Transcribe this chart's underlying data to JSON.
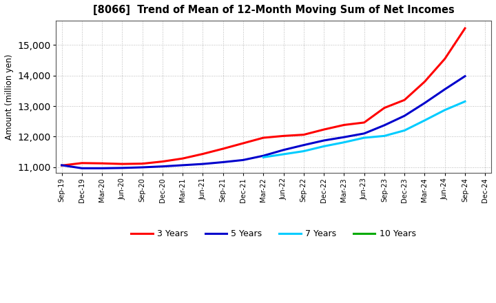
{
  "title": "[8066]  Trend of Mean of 12-Month Moving Sum of Net Incomes",
  "ylabel": "Amount (million yen)",
  "background_color": "#ffffff",
  "plot_bg_color": "#ffffff",
  "grid_color": "#888888",
  "x_labels": [
    "Sep-19",
    "Dec-19",
    "Mar-20",
    "Jun-20",
    "Sep-20",
    "Dec-20",
    "Mar-21",
    "Jun-21",
    "Sep-21",
    "Dec-21",
    "Mar-22",
    "Jun-22",
    "Sep-22",
    "Dec-22",
    "Mar-23",
    "Jun-23",
    "Sep-23",
    "Dec-23",
    "Mar-24",
    "Jun-24",
    "Sep-24",
    "Dec-24"
  ],
  "ylim": [
    10800,
    15800
  ],
  "yticks": [
    11000,
    12000,
    13000,
    14000,
    15000
  ],
  "series": [
    {
      "label": "3 Years",
      "color": "#ff0000",
      "values": [
        11050,
        11130,
        11120,
        11100,
        11110,
        11180,
        11280,
        11430,
        11600,
        11780,
        11960,
        12020,
        12060,
        12230,
        12380,
        12460,
        12940,
        13200,
        13800,
        14550,
        15550,
        null
      ]
    },
    {
      "label": "5 Years",
      "color": "#0000cc",
      "values": [
        11060,
        10960,
        10960,
        10970,
        10990,
        11020,
        11060,
        11100,
        11160,
        11230,
        11370,
        11560,
        11720,
        11870,
        11980,
        12100,
        12370,
        12680,
        13100,
        13550,
        13980,
        null
      ]
    },
    {
      "label": "7 Years",
      "color": "#00ccff",
      "values": [
        null,
        null,
        null,
        null,
        null,
        null,
        null,
        null,
        null,
        null,
        11320,
        11420,
        11520,
        11680,
        11810,
        11960,
        12020,
        12200,
        12530,
        12870,
        13150,
        null
      ]
    },
    {
      "label": "10 Years",
      "color": "#00aa00",
      "values": [
        null,
        null,
        null,
        null,
        null,
        null,
        null,
        null,
        null,
        null,
        null,
        null,
        null,
        null,
        null,
        null,
        null,
        null,
        null,
        null,
        null,
        null
      ]
    }
  ],
  "legend_labels": [
    "3 Years",
    "5 Years",
    "7 Years",
    "10 Years"
  ],
  "legend_colors": [
    "#ff0000",
    "#0000cc",
    "#00ccff",
    "#00aa00"
  ]
}
